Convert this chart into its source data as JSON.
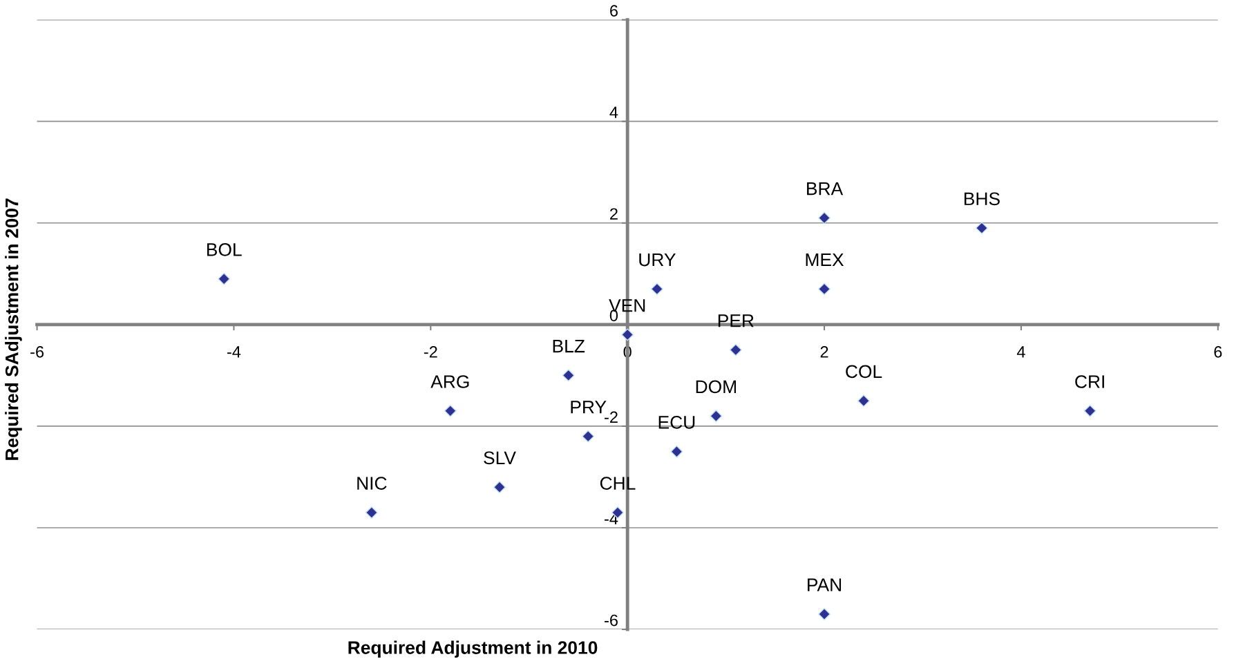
{
  "chart_data": {
    "type": "scatter",
    "xlabel": "Required Adjustment in 2010",
    "ylabel": "Required SAdjustment in 2007",
    "x": [
      -4.1,
      0.3,
      0,
      2.0,
      3.6,
      2.0,
      1.1,
      -0.6,
      -1.8,
      -0.4,
      0.9,
      0.5,
      2.4,
      4.7,
      -1.3,
      -2.6,
      -0.1,
      2.0
    ],
    "series": [
      {
        "color": "#2e3192",
        "values": [
          0.9,
          0.7,
          -0.2,
          2.1,
          1.9,
          0.7,
          -0.5,
          -1.0,
          -1.7,
          -2.2,
          -1.8,
          -2.5,
          -1.5,
          -1.7,
          -3.2,
          -3.7,
          -3.7,
          -5.7
        ]
      }
    ],
    "annotations": [
      {
        "text": "BOL",
        "x": -4.1,
        "y": 0.9
      },
      {
        "text": "URY",
        "x": 0.3,
        "y": 0.7
      },
      {
        "text": "VEN",
        "x": 0,
        "y": -0.2
      },
      {
        "text": "BRA",
        "x": 2.0,
        "y": 2.1
      },
      {
        "text": "BHS",
        "x": 3.6,
        "y": 1.9
      },
      {
        "text": "MEX",
        "x": 2.0,
        "y": 0.7
      },
      {
        "text": "PER",
        "x": 1.1,
        "y": -0.5
      },
      {
        "text": "BLZ",
        "x": -0.6,
        "y": -1.0
      },
      {
        "text": "ARG",
        "x": -1.8,
        "y": -1.7
      },
      {
        "text": "PRY",
        "x": -0.4,
        "y": -2.2
      },
      {
        "text": "DOM",
        "x": 0.9,
        "y": -1.8
      },
      {
        "text": "ECU",
        "x": 0.5,
        "y": -2.5
      },
      {
        "text": "COL",
        "x": 2.4,
        "y": -1.5
      },
      {
        "text": "CRI",
        "x": 4.7,
        "y": -1.7
      },
      {
        "text": "SLV",
        "x": -1.3,
        "y": -3.2
      },
      {
        "text": "NIC",
        "x": -2.6,
        "y": -3.7
      },
      {
        "text": "CHL",
        "x": -0.1,
        "y": -3.7
      },
      {
        "text": "PAN",
        "x": 2.0,
        "y": -5.7
      }
    ],
    "xlim": [
      -6,
      6
    ],
    "ylim": [
      -6,
      6
    ],
    "xticks": [
      -6,
      -4,
      -2,
      0,
      2,
      4,
      6
    ],
    "yticks": [
      -6,
      -4,
      -2,
      0,
      2,
      4,
      6
    ],
    "grid": "y",
    "marker": "diamond",
    "legend": false
  }
}
